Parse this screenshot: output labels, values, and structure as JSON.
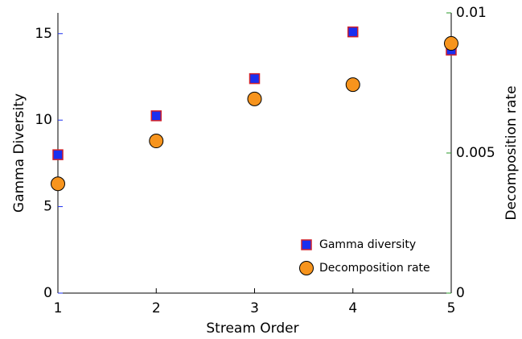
{
  "chart_data": {
    "type": "scatter",
    "xlabel": "Stream Order",
    "ylabel": "Gamma Diversity",
    "y2label": "Decomposition rate",
    "x": [
      1,
      2,
      3,
      4,
      5
    ],
    "xlim": [
      1,
      5
    ],
    "xticks": [
      1,
      2,
      3,
      4,
      5
    ],
    "ylim": [
      0,
      16.2
    ],
    "yticks": [
      0,
      5,
      10,
      15
    ],
    "y2lim": [
      0,
      0.01
    ],
    "y2ticks": [
      0,
      0.005,
      0.01
    ],
    "legend": "lower right",
    "series": [
      {
        "name": "Gamma diversity",
        "color": "#1a2ff0",
        "edge": "#d0202a",
        "marker": "square",
        "values": [
          8.0,
          10.25,
          12.4,
          15.1,
          14.05
        ]
      },
      {
        "name": "Decomposition rate",
        "color": "#f7941d",
        "edge": "#000000",
        "marker": "circle",
        "axis": "y2",
        "values": [
          0.0039,
          0.00543,
          0.00693,
          0.00744,
          0.00891
        ]
      }
    ]
  }
}
